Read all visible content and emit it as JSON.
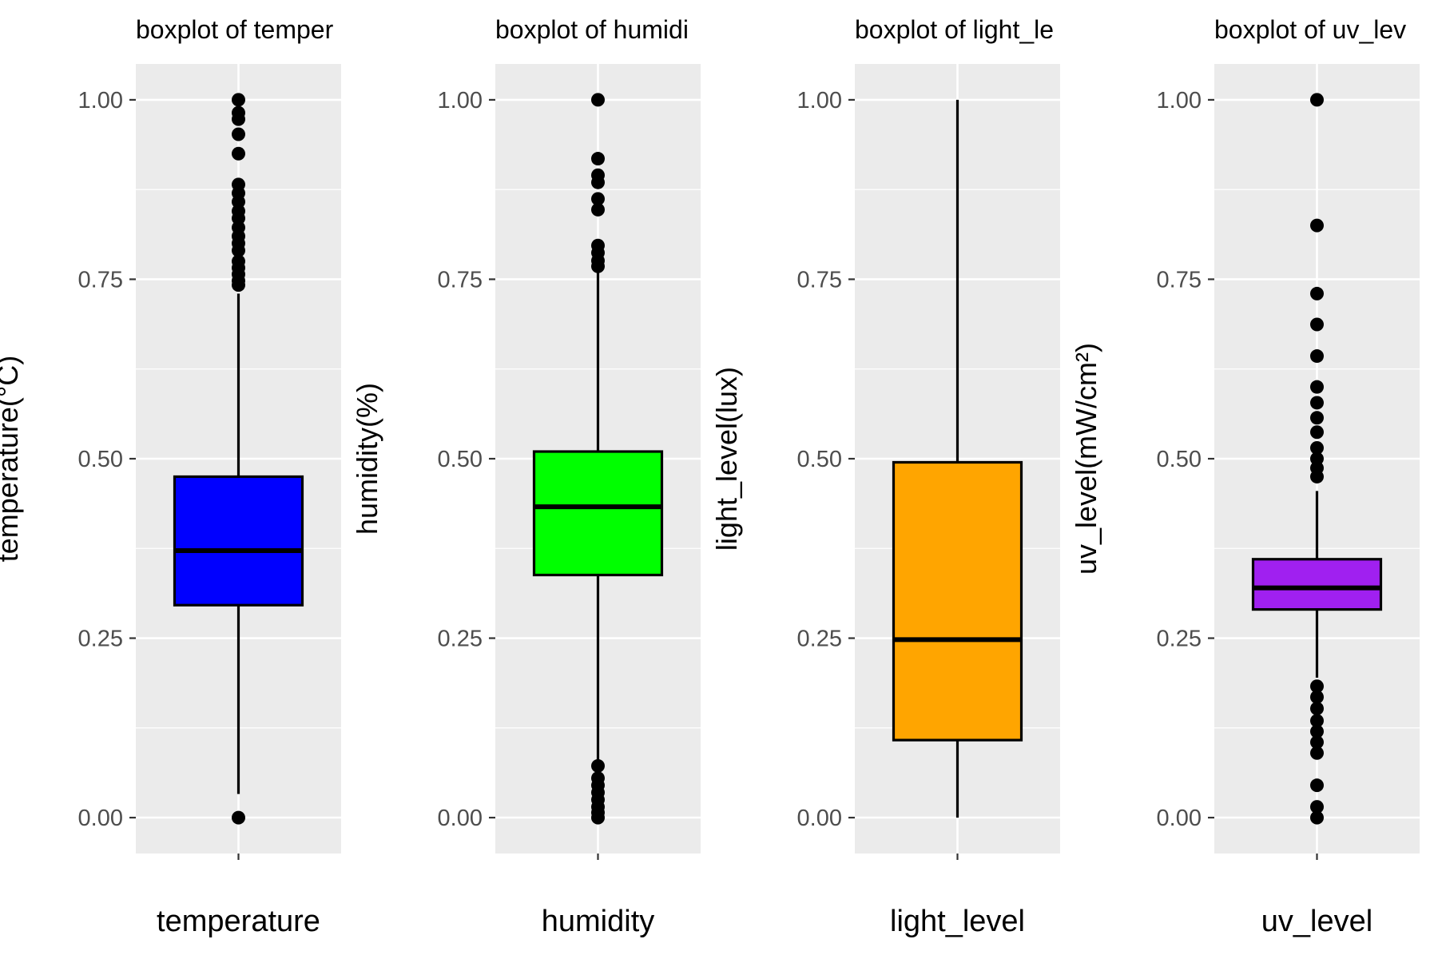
{
  "chart_data": [
    {
      "type": "box",
      "title": "boxplot of temper",
      "xlabel": "temperature",
      "ylabel": "temperature(°C)",
      "fill": "#0000ff",
      "ylim": [
        -0.05,
        1.05
      ],
      "yticks": [
        0.0,
        0.25,
        0.5,
        0.75,
        1.0
      ],
      "ytick_labels": [
        "0.00",
        "0.25",
        "0.50",
        "0.75",
        "1.00"
      ],
      "grid": true,
      "box": {
        "whisker_low": 0.033,
        "q1": 0.296,
        "median": 0.372,
        "q3": 0.475,
        "whisker_high": 0.73
      },
      "outliers": [
        1.0,
        0.982,
        0.973,
        0.952,
        0.925,
        0.882,
        0.87,
        0.858,
        0.845,
        0.835,
        0.822,
        0.81,
        0.8,
        0.79,
        0.775,
        0.766,
        0.757,
        0.748,
        0.742,
        0.0
      ]
    },
    {
      "type": "box",
      "title": "boxplot of humidi",
      "xlabel": "humidity",
      "ylabel": "humidity(%)",
      "fill": "#00ff00",
      "ylim": [
        -0.05,
        1.05
      ],
      "yticks": [
        0.0,
        0.25,
        0.5,
        0.75,
        1.0
      ],
      "ytick_labels": [
        "0.00",
        "0.25",
        "0.50",
        "0.75",
        "1.00"
      ],
      "grid": true,
      "box": {
        "whisker_low": 0.08,
        "q1": 0.338,
        "median": 0.433,
        "q3": 0.51,
        "whisker_high": 0.76
      },
      "outliers": [
        1.0,
        0.918,
        0.895,
        0.885,
        0.862,
        0.847,
        0.797,
        0.787,
        0.776,
        0.768,
        0.072,
        0.055,
        0.045,
        0.035,
        0.025,
        0.015,
        0.007,
        0.0
      ]
    },
    {
      "type": "box",
      "title": "boxplot of light_le",
      "xlabel": "light_level",
      "ylabel": "light_level(lux)",
      "fill": "#ffa500",
      "ylim": [
        -0.05,
        1.05
      ],
      "yticks": [
        0.0,
        0.25,
        0.5,
        0.75,
        1.0
      ],
      "ytick_labels": [
        "0.00",
        "0.25",
        "0.50",
        "0.75",
        "1.00"
      ],
      "grid": true,
      "box": {
        "whisker_low": 0.0,
        "q1": 0.108,
        "median": 0.248,
        "q3": 0.495,
        "whisker_high": 1.0
      },
      "outliers": []
    },
    {
      "type": "box",
      "title": "boxplot of uv_lev",
      "xlabel": "uv_level",
      "ylabel": "uv_level(mW/cm²)",
      "fill": "#a020f0",
      "ylim": [
        -0.05,
        1.05
      ],
      "yticks": [
        0.0,
        0.25,
        0.5,
        0.75,
        1.0
      ],
      "ytick_labels": [
        "0.00",
        "0.25",
        "0.50",
        "0.75",
        "1.00"
      ],
      "grid": true,
      "box": {
        "whisker_low": 0.195,
        "q1": 0.29,
        "median": 0.32,
        "q3": 0.36,
        "whisker_high": 0.455
      },
      "outliers": [
        1.0,
        0.825,
        0.73,
        0.687,
        0.643,
        0.6,
        0.578,
        0.557,
        0.537,
        0.515,
        0.5,
        0.487,
        0.475,
        0.183,
        0.168,
        0.152,
        0.135,
        0.12,
        0.105,
        0.09,
        0.045,
        0.015,
        0.0
      ]
    }
  ]
}
